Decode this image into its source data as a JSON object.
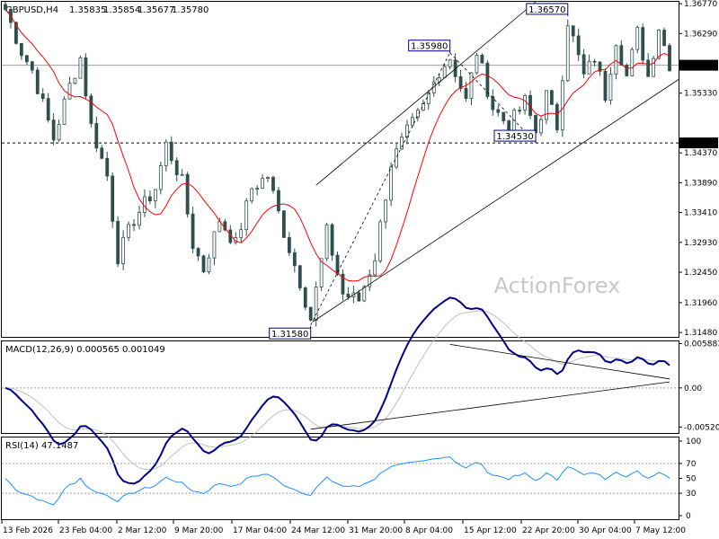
{
  "chart_data": {
    "type": "candlestick",
    "header": {
      "symbol": "GBPUSD,H4",
      "values": [
        "1.35835",
        "1.35854",
        "1.35677",
        "1.35780"
      ]
    },
    "watermark": "ActionForex",
    "price_panel": {
      "ylim": [
        1.3141,
        1.368
      ],
      "ticks": [
        "1.36770",
        "1.36290",
        "1.35780",
        "1.35330",
        "1.34530",
        "1.34370",
        "1.33890",
        "1.33410",
        "1.32930",
        "1.32450",
        "1.31960",
        "1.31480"
      ],
      "current_price": "1.35780",
      "support_level": "1.34530",
      "price_labels": [
        {
          "text": "1.31580",
          "x_index": 57
        },
        {
          "text": "1.35980",
          "x_index": 83
        },
        {
          "text": "1.34530",
          "x_index": 99
        },
        {
          "text": "1.36570",
          "x_index": 105
        }
      ],
      "ma_color": "#ff0000",
      "candle_color": "#2f4f4f"
    },
    "macd_panel": {
      "header": "MACD(12,26,9) 0.000565 0.001049",
      "ticks": [
        "0.005883",
        "0.00",
        "-0.005209"
      ],
      "ylim": [
        -0.006,
        0.0062
      ],
      "line_color": "#00008b",
      "signal_color": "#c0c0c0"
    },
    "rsi_panel": {
      "header": "RSI(14) 47.1487",
      "ticks": [
        "100",
        "70",
        "50",
        "30",
        "0"
      ],
      "ylim": [
        0,
        100
      ],
      "line_color": "#1e90ff"
    },
    "x_ticks": [
      "13 Feb 2026",
      "23 Feb 04:00",
      "2 Mar 12:00",
      "9 Mar 20:00",
      "17 Mar 04:00",
      "24 Mar 12:00",
      "31 Mar 20:00",
      "8 Apr 04:00",
      "15 Apr 12:00",
      "22 Apr 20:00",
      "30 Apr 04:00",
      "7 May 12:00"
    ]
  }
}
